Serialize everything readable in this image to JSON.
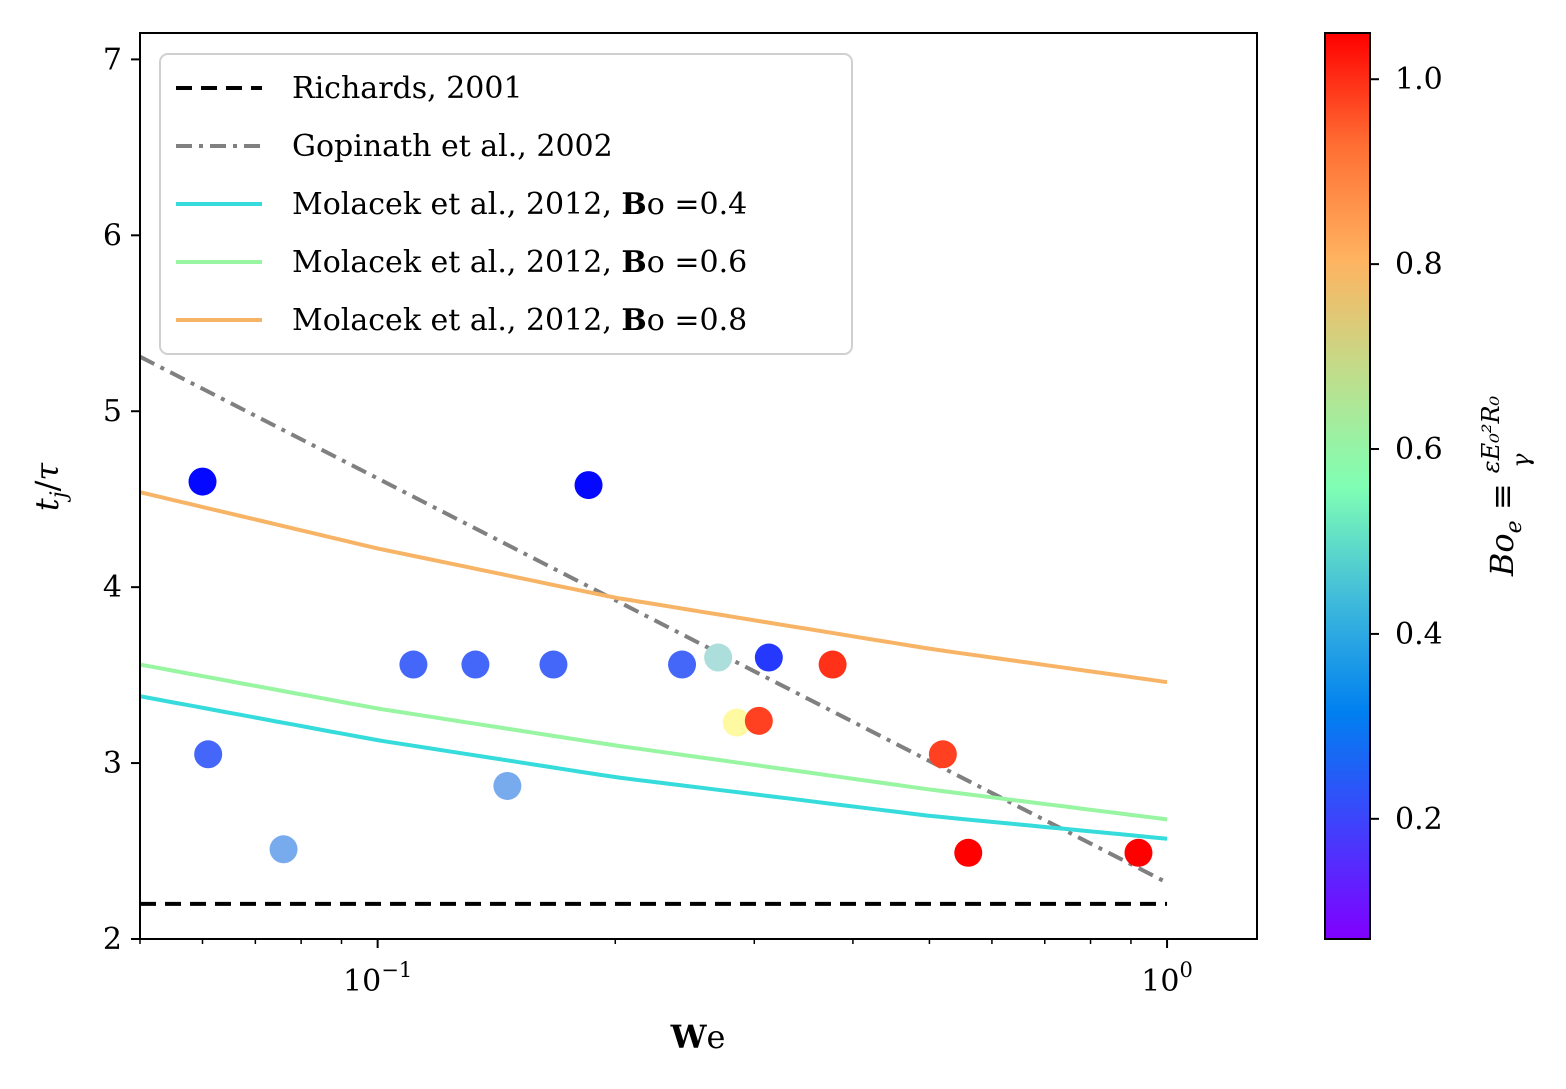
{
  "chart_data": {
    "type": "scatter",
    "xlabel": "We",
    "ylabel": "t_j/τ",
    "xscale": "log",
    "xlim": [
      0.05,
      1.3
    ],
    "ylim": [
      2,
      7.15
    ],
    "xticks": [
      {
        "value": 0.1,
        "base": "10",
        "exp": "−1"
      },
      {
        "value": 1,
        "base": "10",
        "exp": "0"
      }
    ],
    "yticks": [
      2,
      3,
      4,
      5,
      6,
      7
    ],
    "grid": false,
    "legend_position": "top-left",
    "lines": [
      {
        "name": "Richards, 2001",
        "color": "#000000",
        "style": "dashed",
        "x": [
          0.05,
          1.0
        ],
        "y": [
          2.2,
          2.2
        ]
      },
      {
        "name": "Gopinath et al., 2002",
        "color": "#808080",
        "style": "dashdot",
        "x": [
          0.05,
          1.0
        ],
        "y": [
          5.31,
          2.32
        ]
      },
      {
        "name": "Molacek et al., 2012, Bo =0.4",
        "color": "#36dbdb",
        "style": "solid",
        "x": [
          0.05,
          0.1,
          0.2,
          0.5,
          1.0
        ],
        "y": [
          3.38,
          3.13,
          2.92,
          2.7,
          2.57
        ]
      },
      {
        "name": "Molacek et al., 2012, Bo =0.6",
        "color": "#98f5a2",
        "style": "solid",
        "x": [
          0.05,
          0.1,
          0.2,
          0.5,
          1.0
        ],
        "y": [
          3.56,
          3.31,
          3.1,
          2.85,
          2.68
        ]
      },
      {
        "name": "Molacek et al., 2012, Bo =0.8",
        "color": "#f8b466",
        "style": "solid",
        "x": [
          0.05,
          0.1,
          0.2,
          0.5,
          1.0
        ],
        "y": [
          4.54,
          4.22,
          3.94,
          3.65,
          3.46
        ]
      }
    ],
    "points": [
      {
        "x": 0.06,
        "y": 4.6,
        "c": 0.08
      },
      {
        "x": 0.061,
        "y": 3.05,
        "c": 0.2
      },
      {
        "x": 0.076,
        "y": 2.51,
        "c": 0.3
      },
      {
        "x": 0.111,
        "y": 3.56,
        "c": 0.2
      },
      {
        "x": 0.133,
        "y": 3.56,
        "c": 0.2
      },
      {
        "x": 0.146,
        "y": 2.87,
        "c": 0.3
      },
      {
        "x": 0.167,
        "y": 3.56,
        "c": 0.2
      },
      {
        "x": 0.185,
        "y": 4.58,
        "c": 0.08
      },
      {
        "x": 0.243,
        "y": 3.56,
        "c": 0.2
      },
      {
        "x": 0.27,
        "y": 3.6,
        "c": 0.4
      },
      {
        "x": 0.285,
        "y": 3.23,
        "c": 0.62
      },
      {
        "x": 0.304,
        "y": 3.24,
        "c": 0.97
      },
      {
        "x": 0.313,
        "y": 3.6,
        "c": 0.14
      },
      {
        "x": 0.377,
        "y": 3.56,
        "c": 0.99
      },
      {
        "x": 0.52,
        "y": 3.05,
        "c": 0.97
      },
      {
        "x": 0.56,
        "y": 2.49,
        "c": 1.05
      },
      {
        "x": 0.92,
        "y": 2.49,
        "c": 1.05
      }
    ],
    "colorbar": {
      "label": "Bo_e ≡ εE₀²R₀/γ",
      "range": [
        0.07,
        1.05
      ],
      "ticks": [
        0.2,
        0.4,
        0.6,
        0.8,
        1.0
      ],
      "tick_labels": [
        "0.2",
        "0.4",
        "0.6",
        "0.8",
        "1.0"
      ],
      "colormap": "rainbow"
    }
  }
}
